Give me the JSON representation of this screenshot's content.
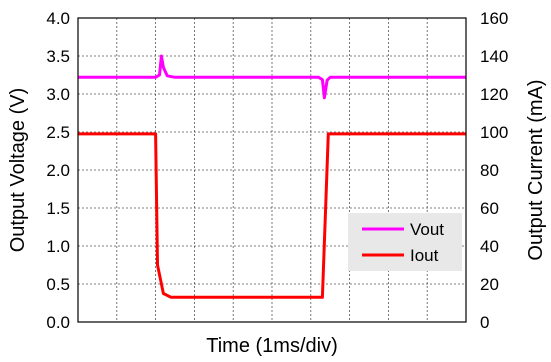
{
  "chart_data": {
    "type": "line",
    "xlabel": "Time (1ms/div)",
    "ylabel_left": "Output Voltage (V)",
    "ylabel_right": "Output Current (mA)",
    "x_range": [
      0,
      10
    ],
    "x_unit": "ms",
    "ylim_left": [
      0,
      4.0
    ],
    "ylim_right": [
      0,
      160
    ],
    "yticks_left": [
      "0.0",
      "0.5",
      "1.0",
      "1.5",
      "2.0",
      "2.5",
      "3.0",
      "3.5",
      "4.0"
    ],
    "yticks_right": [
      "0",
      "20",
      "40",
      "60",
      "80",
      "100",
      "120",
      "140",
      "160"
    ],
    "grid": true,
    "legend_position": "bottom-right",
    "series": [
      {
        "name": "Vout",
        "axis": "left",
        "color": "#FF00FF",
        "points": [
          [
            0,
            3.22
          ],
          [
            2.0,
            3.22
          ],
          [
            2.1,
            3.25
          ],
          [
            2.15,
            3.5
          ],
          [
            2.2,
            3.35
          ],
          [
            2.3,
            3.24
          ],
          [
            2.5,
            3.22
          ],
          [
            6.2,
            3.22
          ],
          [
            6.3,
            3.19
          ],
          [
            6.35,
            2.95
          ],
          [
            6.42,
            3.18
          ],
          [
            6.5,
            3.22
          ],
          [
            10,
            3.22
          ]
        ]
      },
      {
        "name": "Iout",
        "axis": "right",
        "color": "#FF0000",
        "points": [
          [
            0,
            99
          ],
          [
            2.0,
            99
          ],
          [
            2.05,
            30
          ],
          [
            2.2,
            15
          ],
          [
            2.4,
            13
          ],
          [
            6.3,
            13
          ],
          [
            6.45,
            99
          ],
          [
            10,
            99
          ]
        ]
      }
    ]
  }
}
